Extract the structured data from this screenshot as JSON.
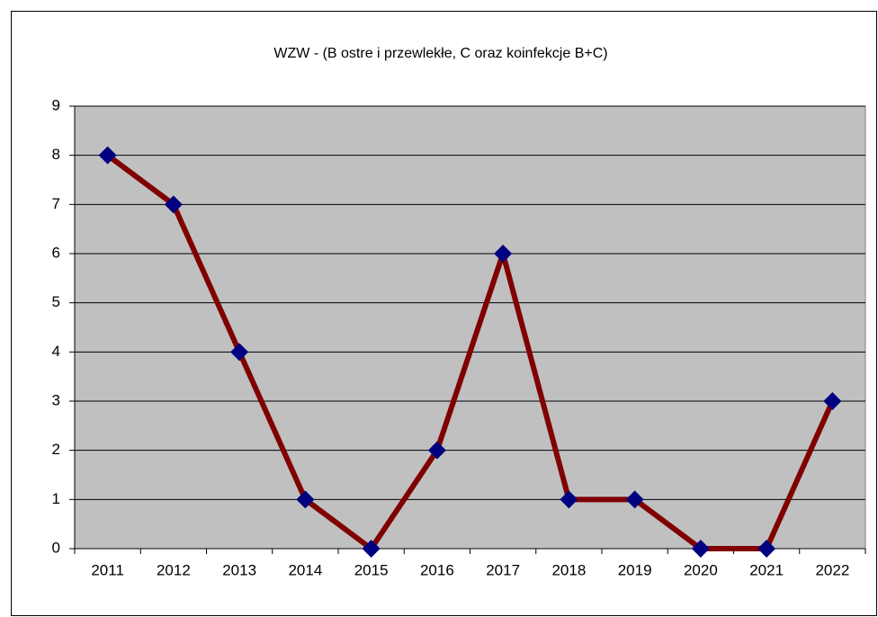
{
  "chart_data": {
    "type": "line",
    "title": "WZW - (B ostre i przewlekłe,  C oraz koinfekcje B+C)",
    "categories": [
      "2011",
      "2012",
      "2013",
      "2014",
      "2015",
      "2016",
      "2017",
      "2018",
      "2019",
      "2020",
      "2021",
      "2022"
    ],
    "values": [
      8,
      7,
      4,
      1,
      0,
      2,
      6,
      1,
      1,
      0,
      0,
      3
    ],
    "color": "#800000",
    "marker_color": "#000080",
    "plot_background": "#c0c0c0",
    "ylim": [
      0,
      9
    ],
    "yticks": [
      0,
      1,
      2,
      3,
      4,
      5,
      6,
      7,
      8,
      9
    ],
    "grid": true
  }
}
